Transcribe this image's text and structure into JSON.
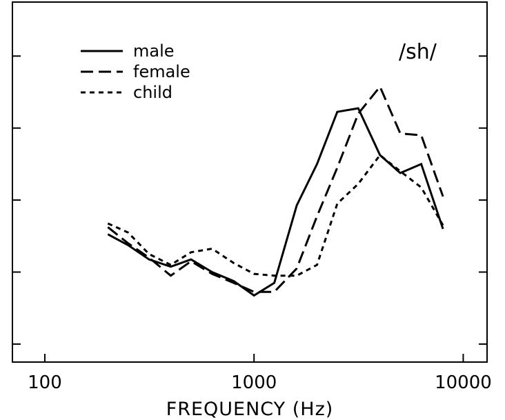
{
  "chart_data": {
    "type": "line",
    "xlabel": "FREQUENCY (Hz)",
    "ylabel": "",
    "xscale": "log",
    "xlim": [
      70,
      13000
    ],
    "ylim": [
      0,
      10
    ],
    "xticks": [
      {
        "value": 100,
        "label": "100"
      },
      {
        "value": 1000,
        "label": "1000"
      },
      {
        "value": 10000,
        "label": "10000"
      }
    ],
    "annotation": "/sh/",
    "legend_position": "top-left",
    "grid": false,
    "series": [
      {
        "name": "male",
        "dash": "solid",
        "x": [
          200,
          250,
          315,
          400,
          500,
          630,
          800,
          1000,
          1250,
          1600,
          2000,
          2500,
          3150,
          4000,
          5000,
          6300,
          8000
        ],
        "y": [
          3.55,
          3.25,
          2.85,
          2.65,
          2.85,
          2.5,
          2.25,
          1.85,
          2.2,
          4.35,
          5.5,
          6.95,
          7.05,
          5.75,
          5.25,
          5.5,
          3.7
        ]
      },
      {
        "name": "female",
        "dash": "long",
        "x": [
          200,
          250,
          315,
          400,
          500,
          630,
          800,
          1000,
          1250,
          1600,
          2000,
          2500,
          3150,
          4000,
          5000,
          6300,
          8000
        ],
        "y": [
          3.75,
          3.3,
          2.9,
          2.4,
          2.8,
          2.45,
          2.2,
          1.95,
          1.95,
          2.6,
          4.05,
          5.4,
          6.9,
          7.65,
          6.35,
          6.3,
          4.6
        ]
      },
      {
        "name": "child",
        "dash": "short",
        "x": [
          200,
          250,
          315,
          400,
          500,
          630,
          800,
          1000,
          1250,
          1600,
          2000,
          2500,
          3150,
          4000,
          5000,
          6300,
          8000
        ],
        "y": [
          3.85,
          3.6,
          3.0,
          2.7,
          3.05,
          3.15,
          2.75,
          2.45,
          2.4,
          2.4,
          2.7,
          4.4,
          4.95,
          5.75,
          5.3,
          4.85,
          3.8
        ]
      }
    ]
  }
}
